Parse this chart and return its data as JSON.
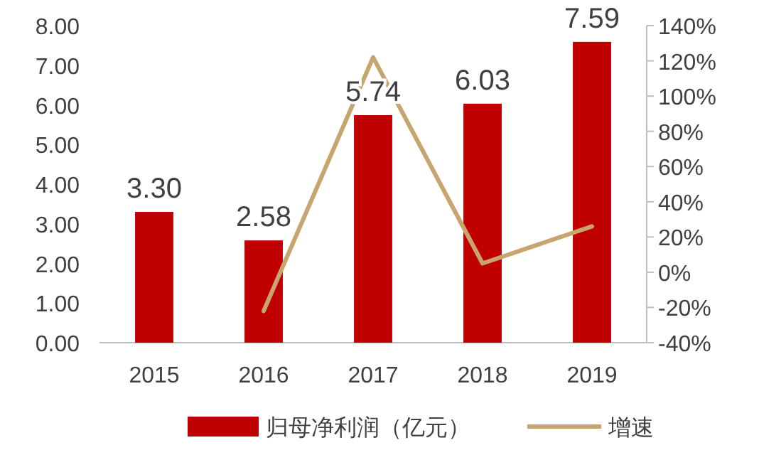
{
  "chart_data": {
    "type": "bar",
    "categories": [
      "2015",
      "2016",
      "2017",
      "2018",
      "2019"
    ],
    "series": [
      {
        "name": "归母净利润（亿元）",
        "color": "#c00000",
        "values": [
          3.3,
          2.58,
          5.74,
          6.03,
          7.59
        ],
        "value_labels": [
          "3.30",
          "2.58",
          "5.74",
          "6.03",
          "7.59"
        ]
      },
      {
        "name": "增速",
        "type": "line",
        "axis": "y2",
        "color": "#c8a46e",
        "values": [
          null,
          -22,
          122,
          5,
          26
        ]
      }
    ],
    "ylim": [
      0,
      8
    ],
    "yticks": [
      {
        "value": 0,
        "label": "0.00"
      },
      {
        "value": 1,
        "label": "1.00"
      },
      {
        "value": 2,
        "label": "2.00"
      },
      {
        "value": 3,
        "label": "3.00"
      },
      {
        "value": 4,
        "label": "4.00"
      },
      {
        "value": 5,
        "label": "5.00"
      },
      {
        "value": 6,
        "label": "6.00"
      },
      {
        "value": 7,
        "label": "7.00"
      },
      {
        "value": 8,
        "label": "8.00"
      }
    ],
    "y2lim": [
      -40,
      140
    ],
    "y2ticks": [
      {
        "value": -40,
        "label": "-40%"
      },
      {
        "value": -20,
        "label": "-20%"
      },
      {
        "value": 0,
        "label": "0%"
      },
      {
        "value": 20,
        "label": "20%"
      },
      {
        "value": 40,
        "label": "40%"
      },
      {
        "value": 60,
        "label": "60%"
      },
      {
        "value": 80,
        "label": "80%"
      },
      {
        "value": 100,
        "label": "100%"
      },
      {
        "value": 120,
        "label": "120%"
      },
      {
        "value": 140,
        "label": "140%"
      }
    ],
    "legend": "bottom",
    "grid": false
  }
}
